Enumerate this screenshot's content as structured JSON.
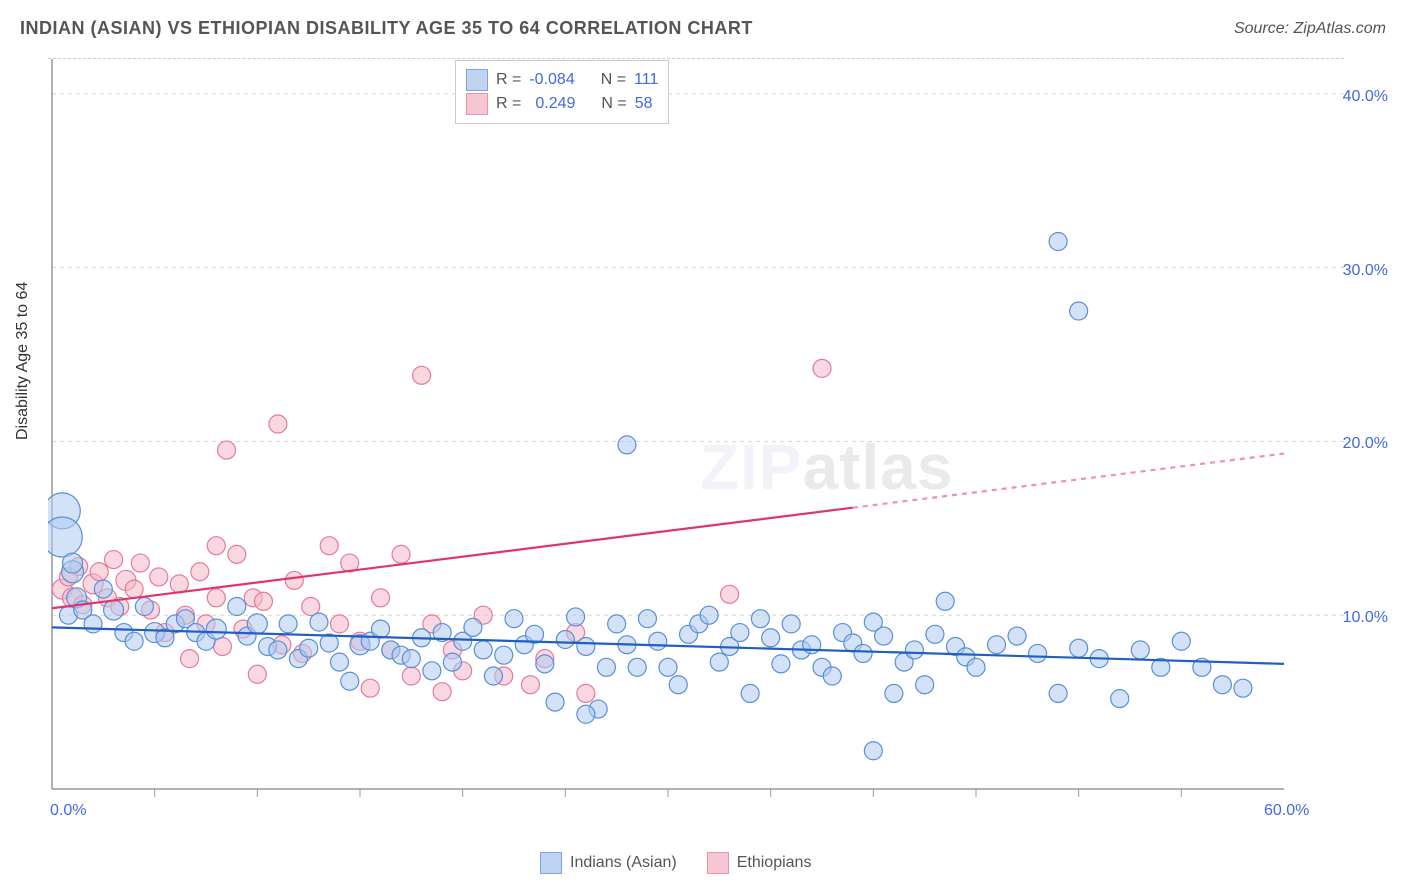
{
  "title": "INDIAN (ASIAN) VS ETHIOPIAN DISABILITY AGE 35 TO 64 CORRELATION CHART",
  "source": "Source: ZipAtlas.com",
  "y_axis_label": "Disability Age 35 to 64",
  "watermark_zip": "ZIP",
  "watermark_atlas": "atlas",
  "chart": {
    "type": "scatter",
    "x_domain": [
      0,
      60
    ],
    "y_domain": [
      0,
      42
    ],
    "x_ticks": [
      0,
      60
    ],
    "x_tick_labels": [
      "0.0%",
      "60.0%"
    ],
    "x_minor_ticks": [
      5,
      10,
      15,
      20,
      25,
      30,
      35,
      40,
      45,
      50,
      55
    ],
    "y_ticks": [
      10,
      20,
      30,
      40
    ],
    "y_tick_labels": [
      "10.0%",
      "20.0%",
      "30.0%",
      "40.0%"
    ],
    "grid_color": "#d5d5d5",
    "grid_dash": "4,4",
    "axis_color": "#999999",
    "background_color": "#ffffff",
    "tick_label_color": "#4169e1",
    "tick_label_fontsize": 16,
    "series": {
      "indians": {
        "label": "Indians (Asian)",
        "fill": "#afcaf0",
        "fill_opacity": 0.55,
        "stroke": "#5a8fd6",
        "stroke_width": 1.2,
        "trend_color": "#1f5fbf",
        "trend_width": 2.2,
        "trend_y_start": 9.3,
        "trend_y_end": 7.2,
        "trend_x_start": 0,
        "trend_x_end": 60,
        "trend_dash_after_x": 60,
        "R": "-0.084",
        "N": "111",
        "default_r": 10,
        "points": [
          [
            0.5,
            16,
            18
          ],
          [
            0.5,
            14.5,
            20
          ],
          [
            1,
            12.5,
            11
          ],
          [
            1.2,
            11,
            10
          ],
          [
            0.8,
            10,
            9
          ],
          [
            1.5,
            10.3,
            9
          ],
          [
            2,
            9.5,
            9
          ],
          [
            2.5,
            11.5,
            9
          ],
          [
            3,
            10.3,
            10
          ],
          [
            1,
            13,
            10
          ],
          [
            3.5,
            9,
            9
          ],
          [
            4,
            8.5,
            9
          ],
          [
            4.5,
            10.5,
            9
          ],
          [
            5,
            9,
            10
          ],
          [
            5.5,
            8.7,
            9
          ],
          [
            6,
            9.5,
            9
          ],
          [
            6.5,
            9.8,
            9
          ],
          [
            7,
            9,
            9
          ],
          [
            7.5,
            8.5,
            9
          ],
          [
            8,
            9.2,
            10
          ],
          [
            9,
            10.5,
            9
          ],
          [
            9.5,
            8.8,
            9
          ],
          [
            10,
            9.5,
            10
          ],
          [
            10.5,
            8.2,
            9
          ],
          [
            11,
            8,
            9
          ],
          [
            11.5,
            9.5,
            9
          ],
          [
            12,
            7.5,
            9
          ],
          [
            12.5,
            8.1,
            9
          ],
          [
            13,
            9.6,
            9
          ],
          [
            13.5,
            8.4,
            9
          ],
          [
            14,
            7.3,
            9
          ],
          [
            14.5,
            6.2,
            9
          ],
          [
            15,
            8.3,
            10
          ],
          [
            15.5,
            8.5,
            9
          ],
          [
            16,
            9.2,
            9
          ],
          [
            16.5,
            8,
            9
          ],
          [
            17,
            7.7,
            9
          ],
          [
            17.5,
            7.5,
            9
          ],
          [
            18,
            8.7,
            9
          ],
          [
            18.5,
            6.8,
            9
          ],
          [
            19,
            9,
            9
          ],
          [
            19.5,
            7.3,
            9
          ],
          [
            20,
            8.5,
            9
          ],
          [
            20.5,
            9.3,
            9
          ],
          [
            21,
            8,
            9
          ],
          [
            21.5,
            6.5,
            9
          ],
          [
            22,
            7.7,
            9
          ],
          [
            22.5,
            9.8,
            9
          ],
          [
            23,
            8.3,
            9
          ],
          [
            23.5,
            8.9,
            9
          ],
          [
            24,
            7.2,
            9
          ],
          [
            24.5,
            5,
            9
          ],
          [
            25,
            8.6,
            9
          ],
          [
            25.5,
            9.9,
            9
          ],
          [
            26,
            8.2,
            9
          ],
          [
            26.6,
            4.6,
            9
          ],
          [
            26,
            4.3,
            9
          ],
          [
            27,
            7,
            9
          ],
          [
            27.5,
            9.5,
            9
          ],
          [
            28,
            8.3,
            9
          ],
          [
            28,
            19.8,
            9
          ],
          [
            28.5,
            7,
            9
          ],
          [
            29,
            9.8,
            9
          ],
          [
            29.5,
            8.5,
            9
          ],
          [
            30,
            7,
            9
          ],
          [
            30.5,
            6,
            9
          ],
          [
            31,
            8.9,
            9
          ],
          [
            31.5,
            9.5,
            9
          ],
          [
            32,
            10,
            9
          ],
          [
            32.5,
            7.3,
            9
          ],
          [
            33,
            8.2,
            9
          ],
          [
            33.5,
            9,
            9
          ],
          [
            34,
            5.5,
            9
          ],
          [
            34.5,
            9.8,
            9
          ],
          [
            35,
            8.7,
            9
          ],
          [
            35.5,
            7.2,
            9
          ],
          [
            36,
            9.5,
            9
          ],
          [
            36.5,
            8,
            9
          ],
          [
            37,
            8.3,
            9
          ],
          [
            37.5,
            7,
            9
          ],
          [
            38,
            6.5,
            9
          ],
          [
            38.5,
            9,
            9
          ],
          [
            39,
            8.4,
            9
          ],
          [
            39.5,
            7.8,
            9
          ],
          [
            40,
            9.6,
            9
          ],
          [
            40.5,
            8.8,
            9
          ],
          [
            41,
            5.5,
            9
          ],
          [
            41.5,
            7.3,
            9
          ],
          [
            42,
            8,
            9
          ],
          [
            42.5,
            6,
            9
          ],
          [
            43,
            8.9,
            9
          ],
          [
            43.5,
            10.8,
            9
          ],
          [
            44,
            8.2,
            9
          ],
          [
            44.5,
            7.6,
            9
          ],
          [
            45,
            7,
            9
          ],
          [
            46,
            8.3,
            9
          ],
          [
            47,
            8.8,
            9
          ],
          [
            40,
            2.2,
            9
          ],
          [
            48,
            7.8,
            9
          ],
          [
            49,
            5.5,
            9
          ],
          [
            50,
            8.1,
            9
          ],
          [
            51,
            7.5,
            9
          ],
          [
            52,
            5.2,
            9
          ],
          [
            53,
            8,
            9
          ],
          [
            54,
            7,
            9
          ],
          [
            49,
            31.5,
            9
          ],
          [
            50,
            27.5,
            9
          ],
          [
            55,
            8.5,
            9
          ],
          [
            56,
            7,
            9
          ],
          [
            57,
            6,
            9
          ],
          [
            58,
            5.8,
            9
          ]
        ]
      },
      "ethiopians": {
        "label": "Ethiopians",
        "fill": "#f5b8c8",
        "fill_opacity": 0.55,
        "stroke": "#e67a9a",
        "stroke_width": 1.2,
        "trend_color": "#e0356b",
        "trend_width": 2.2,
        "trend_y_start": 10.4,
        "trend_y_end": 19.3,
        "trend_x_start": 0,
        "trend_x_end": 60,
        "trend_dash_after_x": 39,
        "R": "0.249",
        "N": "58",
        "default_r": 10,
        "points": [
          [
            0.5,
            11.5,
            10
          ],
          [
            0.8,
            12.2,
            9
          ],
          [
            1,
            11,
            10
          ],
          [
            1.3,
            12.8,
            9
          ],
          [
            1.5,
            10.6,
            9
          ],
          [
            2,
            11.8,
            10
          ],
          [
            2.3,
            12.5,
            9
          ],
          [
            2.7,
            11,
            9
          ],
          [
            3,
            13.2,
            9
          ],
          [
            3.3,
            10.5,
            9
          ],
          [
            3.6,
            12,
            10
          ],
          [
            4,
            11.5,
            9
          ],
          [
            4.3,
            13,
            9
          ],
          [
            4.8,
            10.3,
            9
          ],
          [
            5.2,
            12.2,
            9
          ],
          [
            5.5,
            9,
            9
          ],
          [
            6.2,
            11.8,
            9
          ],
          [
            6.5,
            10,
            9
          ],
          [
            6.7,
            7.5,
            9
          ],
          [
            7.2,
            12.5,
            9
          ],
          [
            7.5,
            9.5,
            9
          ],
          [
            8,
            14,
            9
          ],
          [
            8,
            11,
            9
          ],
          [
            8.3,
            8.2,
            9
          ],
          [
            9,
            13.5,
            9
          ],
          [
            9.3,
            9.2,
            9
          ],
          [
            9.8,
            11,
            9
          ],
          [
            8.5,
            19.5,
            9
          ],
          [
            10.3,
            10.8,
            9
          ],
          [
            10,
            6.6,
            9
          ],
          [
            11,
            21,
            9
          ],
          [
            11.2,
            8.3,
            9
          ],
          [
            11.8,
            12,
            9
          ],
          [
            12.2,
            7.8,
            9
          ],
          [
            12.6,
            10.5,
            9
          ],
          [
            13.5,
            14,
            9
          ],
          [
            14,
            9.5,
            9
          ],
          [
            14.5,
            13,
            9
          ],
          [
            15,
            8.5,
            9
          ],
          [
            15.5,
            5.8,
            9
          ],
          [
            16,
            11,
            9
          ],
          [
            16.5,
            8,
            9
          ],
          [
            17,
            13.5,
            9
          ],
          [
            17.5,
            6.5,
            9
          ],
          [
            18,
            23.8,
            9
          ],
          [
            18.5,
            9.5,
            9
          ],
          [
            19,
            5.6,
            9
          ],
          [
            19.5,
            8,
            9
          ],
          [
            20,
            6.8,
            9
          ],
          [
            21,
            10,
            9
          ],
          [
            22,
            6.5,
            9
          ],
          [
            24,
            7.5,
            9
          ],
          [
            23.3,
            6,
            9
          ],
          [
            25.5,
            9,
            9
          ],
          [
            26,
            5.5,
            9
          ],
          [
            33,
            11.2,
            9
          ],
          [
            37.5,
            24.2,
            9
          ]
        ]
      }
    }
  },
  "legend_top": {
    "r_label": "R =",
    "n_label": "N ="
  },
  "legend_bottom": {
    "items": [
      "indians",
      "ethiopians"
    ]
  }
}
